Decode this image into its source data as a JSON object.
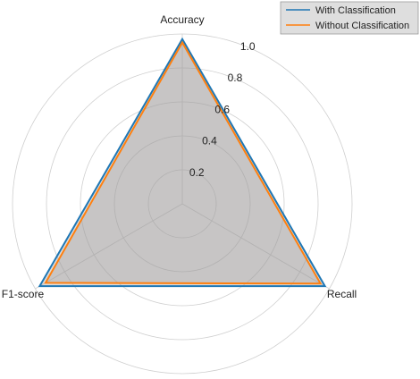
{
  "chart_data": {
    "type": "radar",
    "axes": [
      "Accuracy",
      "Recall",
      "F1-score"
    ],
    "radial_ticks": [
      "0.2",
      "0.4",
      "0.6",
      "0.8",
      "1.0"
    ],
    "radial_tick_values": [
      0.2,
      0.4,
      0.6,
      0.8,
      1.0
    ],
    "rlim": [
      0,
      1.0
    ],
    "grid": true,
    "legend_position": "top-right",
    "series": [
      {
        "name": "With Classification",
        "values": [
          0.97,
          0.97,
          0.97
        ],
        "color": "#1f77b4"
      },
      {
        "name": "Without Classification",
        "values": [
          0.95,
          0.94,
          0.93
        ],
        "color": "#ff7f0e"
      }
    ],
    "fill_color": "#9e9a9a"
  }
}
